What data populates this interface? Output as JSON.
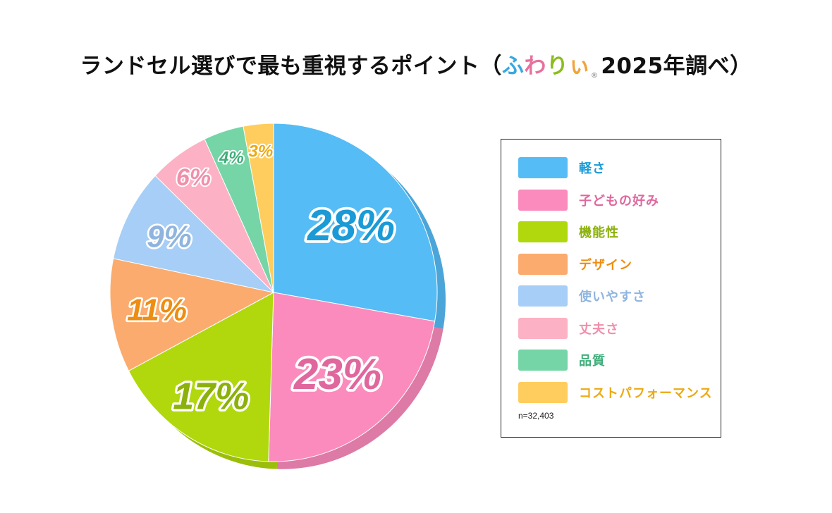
{
  "title": {
    "prefix": "ランドセル選びで最も重視するポイント（",
    "brand": [
      "ふ",
      "わ",
      "り",
      "ぃ"
    ],
    "brand_colors": [
      "#3aa7e0",
      "#e8709c",
      "#8bbd1c",
      "#f2a33a"
    ],
    "reg_mark": "®",
    "suffix": "2025年調べ）"
  },
  "chart_data": {
    "type": "pie",
    "title": "ランドセル選びで最も重視するポイント（ふわりぃ 2025年調べ）",
    "note": "n=32,403",
    "slices": [
      {
        "label": "軽さ",
        "value": 28,
        "display": "28%",
        "color": "#55bcf5",
        "text_color": "#1a9ad6"
      },
      {
        "label": "子どもの好み",
        "value": 23,
        "display": "23%",
        "color": "#fb8bbd",
        "text_color": "#e0679e"
      },
      {
        "label": "機能性",
        "value": 17,
        "display": "17%",
        "color": "#b0d80c",
        "text_color": "#8bb10a"
      },
      {
        "label": "デザイン",
        "value": 11,
        "display": "11%",
        "color": "#fbab6d",
        "text_color": "#ee8d10"
      },
      {
        "label": "使いやすさ",
        "value": 9,
        "display": "9%",
        "color": "#a6cef6",
        "text_color": "#8fb4df"
      },
      {
        "label": "丈夫さ",
        "value": 6,
        "display": "6%",
        "color": "#fdb1c4",
        "text_color": "#f08fab"
      },
      {
        "label": "品質",
        "value": 4,
        "display": "4%",
        "color": "#75d5a6",
        "text_color": "#3fae7a"
      },
      {
        "label": "コストパフォーマンス",
        "value": 3,
        "display": "3%",
        "color": "#ffcd5e",
        "text_color": "#ecaa12"
      }
    ]
  }
}
